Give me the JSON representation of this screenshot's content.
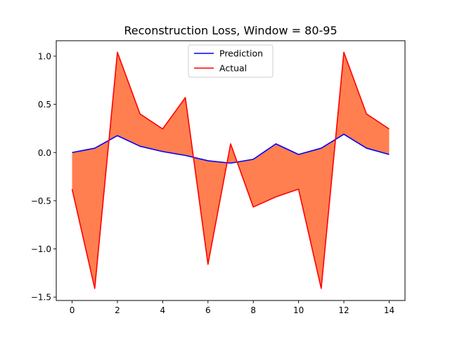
{
  "chart_data": {
    "type": "line",
    "title": "Reconstruction Loss, Window = 80-95",
    "xlabel": "",
    "ylabel": "",
    "x": [
      0,
      1,
      2,
      3,
      4,
      5,
      6,
      7,
      8,
      9,
      10,
      11,
      12,
      13,
      14
    ],
    "xlim": [
      -0.7,
      14.7
    ],
    "ylim": [
      -1.535,
      1.16
    ],
    "xticks": [
      0,
      2,
      4,
      6,
      8,
      10,
      12,
      14
    ],
    "yticks": [
      -1.5,
      -1.0,
      -0.5,
      0.0,
      0.5,
      1.0
    ],
    "ytick_labels": [
      "−1.5",
      "−1.0",
      "−0.5",
      "0.0",
      "0.5",
      "1.0"
    ],
    "grid": false,
    "legend_position": "top-center",
    "fill_between": {
      "color": "#ff7f50"
    },
    "series": [
      {
        "name": "Prediction",
        "color": "#0000ff",
        "values": [
          0.0,
          0.045,
          0.175,
          0.065,
          0.01,
          -0.03,
          -0.085,
          -0.11,
          -0.07,
          0.09,
          -0.02,
          0.045,
          0.19,
          0.045,
          -0.02
        ]
      },
      {
        "name": "Actual",
        "color": "#ff0000",
        "values": [
          -0.38,
          -1.41,
          1.04,
          0.4,
          0.245,
          0.57,
          -1.16,
          0.09,
          -0.565,
          -0.46,
          -0.38,
          -1.41,
          1.04,
          0.4,
          0.245
        ]
      }
    ]
  }
}
